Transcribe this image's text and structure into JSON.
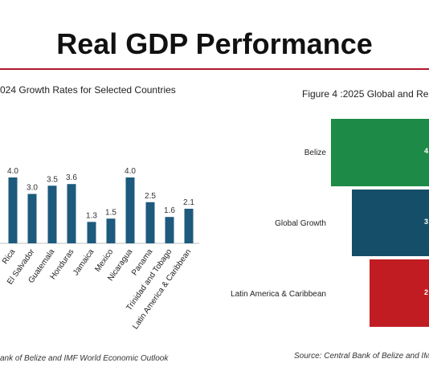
{
  "slide": {
    "title": "Real GDP Performance",
    "accent_color": "#b0182b"
  },
  "chart_data": [
    {
      "type": "bar",
      "title": "024 Growth Rates for Selected Countries",
      "source": "ank of Belize and IMF World Economic Outlook",
      "categories": [
        "Rica",
        "El Salvador",
        "Guatemala",
        "Honduras",
        "Jamaica",
        "Mexico",
        "Nicaragua",
        "Panama",
        "Trinidad and Tobago",
        "Latin America & Caribbean"
      ],
      "values": [
        4.0,
        3.0,
        3.5,
        3.6,
        1.3,
        1.5,
        4.0,
        2.5,
        1.6,
        2.1
      ],
      "data_labels": [
        "4.0",
        "3.0",
        "3.5",
        "3.6",
        "1.3",
        "1.5",
        "4.0",
        "2.5",
        "1.6",
        "2.1"
      ],
      "bar_color": "#1d5a7d",
      "xlabel": "",
      "ylabel": ""
    },
    {
      "type": "bar",
      "orientation": "horizontal",
      "title": "Figure 4 :2025 Global and Re",
      "source": "Source: Central Bank of Belize and IMF",
      "categories": [
        "Belize",
        "Global Growth",
        "Latin America & Caribbean"
      ],
      "data_labels": [
        "4",
        "3",
        "2"
      ],
      "colors": [
        "#1e8a47",
        "#144e68",
        "#c01c22"
      ]
    }
  ]
}
